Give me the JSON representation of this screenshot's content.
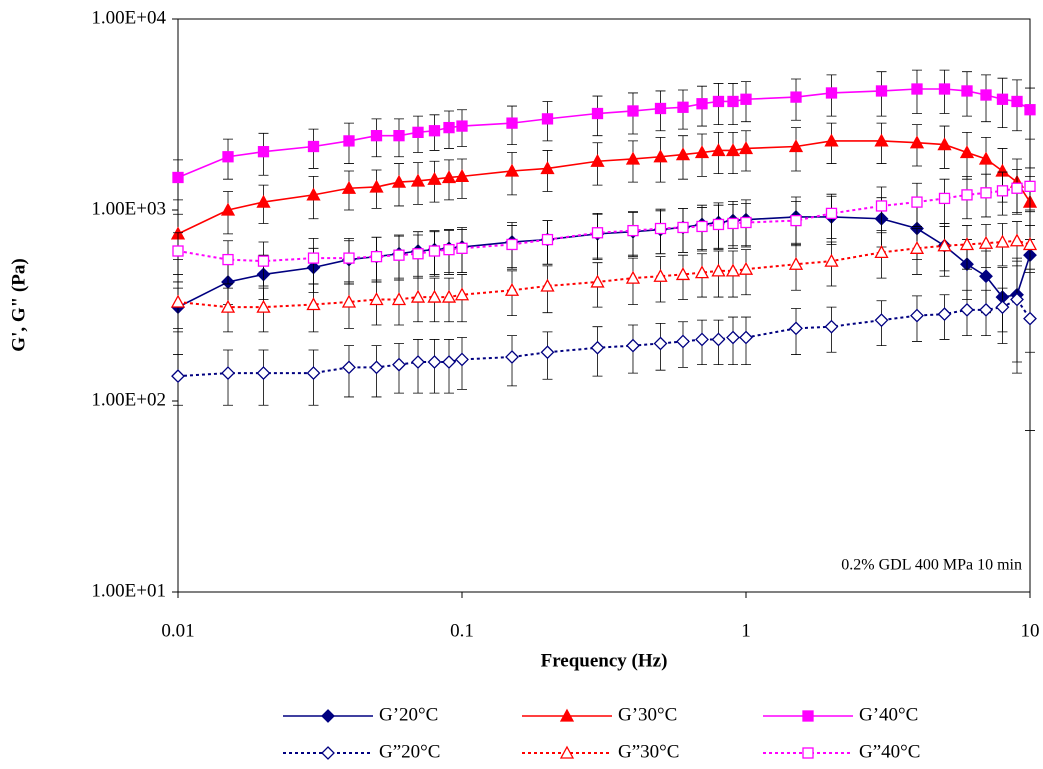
{
  "chart_data": {
    "type": "line",
    "xlabel": "Frequency (Hz)",
    "ylabel": "G', G\" (Pa)",
    "annotation": "0.2% GDL 400 MPa 10 min",
    "xscale": "log",
    "yscale": "log",
    "xlim": [
      0.01,
      10
    ],
    "ylim": [
      10,
      10000
    ],
    "xticks": [
      0.01,
      0.1,
      1,
      10
    ],
    "yticks": [
      {
        "value": 10,
        "label": "1.00E+01"
      },
      {
        "value": 100,
        "label": "1.00E+02"
      },
      {
        "value": 1000,
        "label": "1.00E+03"
      },
      {
        "value": 10000,
        "label": "1.00E+04"
      }
    ],
    "x": [
      0.01,
      0.015,
      0.02,
      0.03,
      0.04,
      0.05,
      0.06,
      0.07,
      0.08,
      0.09,
      0.1,
      0.15,
      0.2,
      0.3,
      0.4,
      0.5,
      0.6,
      0.7,
      0.8,
      0.9,
      1,
      1.5,
      2,
      3,
      4,
      5,
      6,
      7,
      8,
      9,
      10
    ],
    "series": [
      {
        "name": "G’20°C",
        "color": "#000080",
        "marker": "diamond",
        "filled": true,
        "dashed": false,
        "values": [
          310,
          420,
          460,
          500,
          550,
          570,
          590,
          610,
          620,
          630,
          640,
          680,
          700,
          750,
          770,
          790,
          810,
          840,
          860,
          880,
          890,
          920,
          920,
          900,
          800,
          650,
          520,
          450,
          350,
          360,
          580
        ],
        "errors": [
          80,
          100,
          120,
          130,
          140,
          150,
          150,
          160,
          160,
          160,
          170,
          180,
          180,
          200,
          200,
          200,
          210,
          220,
          230,
          230,
          240,
          250,
          260,
          260,
          250,
          200,
          180,
          160,
          150,
          200,
          400
        ]
      },
      {
        "name": "G’30°C",
        "color": "#ff0000",
        "marker": "triangle",
        "filled": true,
        "dashed": false,
        "values": [
          750,
          1000,
          1100,
          1200,
          1300,
          1320,
          1400,
          1420,
          1450,
          1480,
          1500,
          1600,
          1650,
          1800,
          1850,
          1900,
          1950,
          2000,
          2050,
          2050,
          2100,
          2150,
          2300,
          2300,
          2250,
          2200,
          2000,
          1850,
          1600,
          1400,
          1100
        ],
        "errors": [
          200,
          250,
          250,
          300,
          300,
          300,
          350,
          350,
          350,
          350,
          350,
          400,
          400,
          450,
          450,
          500,
          500,
          500,
          500,
          500,
          500,
          550,
          550,
          550,
          550,
          550,
          550,
          550,
          500,
          450,
          400
        ]
      },
      {
        "name": "G’40°C",
        "color": "#ff00ff",
        "marker": "square",
        "filled": true,
        "dashed": false,
        "values": [
          1480,
          1900,
          2020,
          2150,
          2300,
          2450,
          2450,
          2550,
          2600,
          2700,
          2750,
          2850,
          3000,
          3200,
          3300,
          3400,
          3450,
          3600,
          3700,
          3700,
          3800,
          3900,
          4100,
          4200,
          4300,
          4300,
          4200,
          4000,
          3800,
          3700,
          3350
        ],
        "errors": [
          350,
          450,
          500,
          500,
          550,
          550,
          550,
          550,
          550,
          600,
          600,
          650,
          700,
          750,
          800,
          800,
          800,
          850,
          900,
          900,
          900,
          950,
          1000,
          1100,
          1100,
          1100,
          1100,
          1100,
          1100,
          1100,
          1000
        ]
      },
      {
        "name": "G”20°C",
        "color": "#000080",
        "marker": "diamond",
        "filled": false,
        "dashed": true,
        "values": [
          135,
          140,
          140,
          140,
          150,
          150,
          155,
          160,
          160,
          160,
          165,
          170,
          180,
          190,
          195,
          200,
          205,
          210,
          210,
          215,
          215,
          240,
          245,
          265,
          280,
          285,
          300,
          300,
          310,
          340,
          270
        ],
        "errors": [
          40,
          45,
          45,
          45,
          45,
          45,
          45,
          50,
          50,
          50,
          50,
          50,
          50,
          55,
          55,
          55,
          55,
          55,
          55,
          60,
          60,
          65,
          65,
          70,
          75,
          75,
          80,
          80,
          80,
          200,
          200
        ]
      },
      {
        "name": "G”30°C",
        "color": "#ff0000",
        "marker": "triangle",
        "filled": false,
        "dashed": true,
        "values": [
          330,
          310,
          310,
          320,
          330,
          340,
          340,
          350,
          350,
          350,
          360,
          380,
          400,
          420,
          440,
          450,
          460,
          470,
          480,
          480,
          490,
          520,
          540,
          600,
          630,
          650,
          660,
          670,
          680,
          690,
          660
        ],
        "errors": [
          90,
          80,
          80,
          90,
          90,
          90,
          90,
          90,
          90,
          90,
          100,
          100,
          110,
          110,
          120,
          120,
          120,
          120,
          130,
          130,
          130,
          140,
          140,
          160,
          170,
          170,
          170,
          170,
          170,
          180,
          170
        ]
      },
      {
        "name": "G”40°C",
        "color": "#ff00ff",
        "marker": "square",
        "filled": false,
        "dashed": true,
        "values": [
          610,
          550,
          540,
          560,
          560,
          570,
          580,
          590,
          610,
          620,
          630,
          660,
          700,
          760,
          780,
          800,
          810,
          820,
          840,
          850,
          860,
          880,
          960,
          1050,
          1100,
          1150,
          1200,
          1230,
          1260,
          1300,
          1330
        ],
        "errors": [
          150,
          140,
          140,
          150,
          150,
          150,
          150,
          150,
          160,
          160,
          160,
          170,
          180,
          200,
          200,
          210,
          210,
          210,
          220,
          220,
          220,
          230,
          250,
          270,
          280,
          300,
          300,
          310,
          320,
          330,
          330
        ]
      }
    ]
  }
}
